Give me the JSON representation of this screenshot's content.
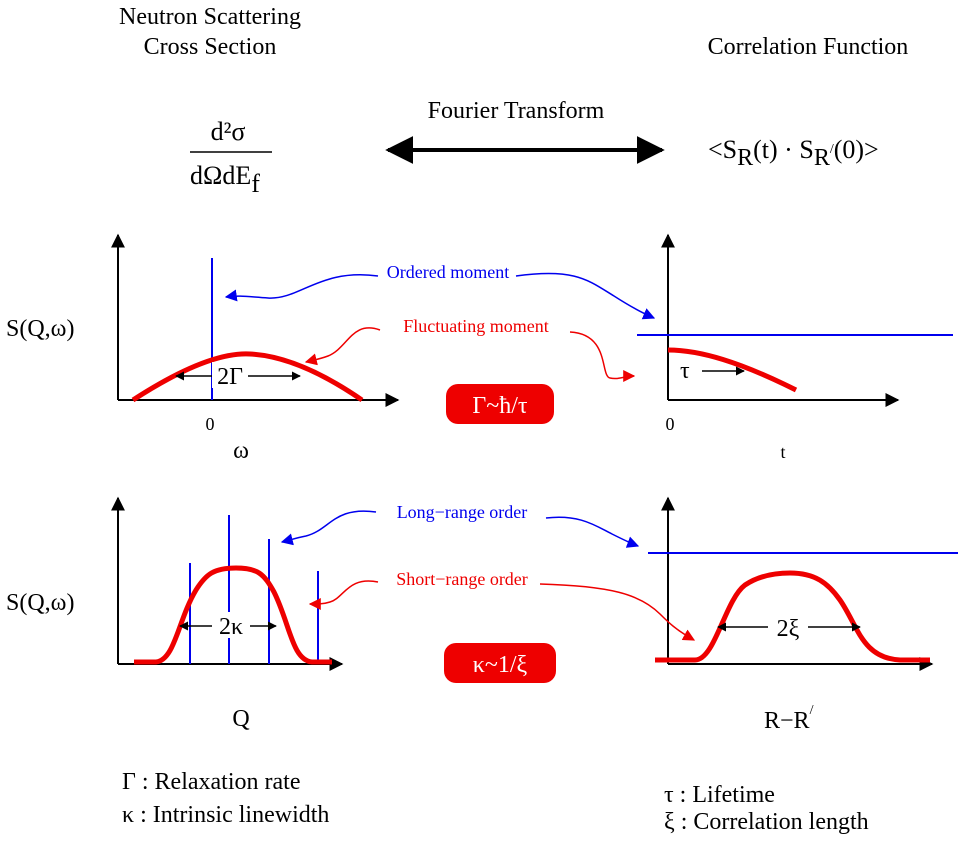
{
  "headers": {
    "left_line1": "Neutron Scattering",
    "left_line2": "Cross Section",
    "right": "Correlation Function",
    "transform": "Fourier Transform"
  },
  "formulas": {
    "cross_section_numerator": "d²σ",
    "cross_section_denominator": "dΩdE",
    "cross_section_denominator_sub": "f",
    "correlation": "<S",
    "correlation_sub_r": "R",
    "correlation_mid": "(t) · S",
    "correlation_sub_r2": "R",
    "correlation_prime": "/",
    "correlation_end": "(0)>"
  },
  "top_row": {
    "ylabel": "S(Q,ω)",
    "left_x_tick": "0",
    "left_xlabel": "ω",
    "right_x_tick": "0",
    "right_xlabel": "t",
    "ordered_label": "Ordered moment",
    "fluctuating_label": "Fluctuating moment",
    "width_label": "2Γ",
    "tau_label": "τ",
    "relation_badge": "Γ~ħ/τ"
  },
  "bottom_row": {
    "ylabel": "S(Q,ω)",
    "left_xlabel": "Q",
    "right_xlabel": "R−R",
    "right_xlabel_prime": "/",
    "long_range_label": "Long−range order",
    "short_range_label": "Short−range order",
    "width_label": "2κ",
    "xi_label": "2ξ",
    "relation_badge": "κ~1/ξ"
  },
  "legend": {
    "gamma": "Γ : Relaxation rate",
    "kappa": "κ : Intrinsic linewidth",
    "tau": "τ : Lifetime",
    "xi": "ξ : Correlation length"
  },
  "colors": {
    "blue": "#0000ee",
    "red": "#ee0000",
    "black": "#000000"
  }
}
